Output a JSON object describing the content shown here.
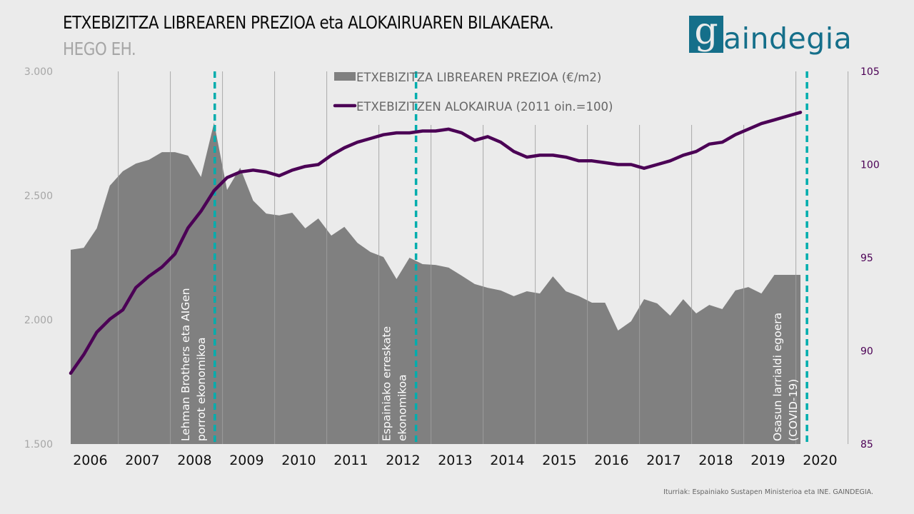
{
  "header": {
    "title": "ETXEBIZITZA LIBREAREN PREZIOA eta ALOKAIRUAREN BILAKAERA.",
    "subtitle": "HEGO EH.",
    "logo_initial": "g",
    "logo_text": "aindegia"
  },
  "footer": {
    "source": "Iturriak: Espainiako Sustapen Ministerioa eta INE. GAINDEGIA."
  },
  "colors": {
    "price_area": "#808080",
    "rent_line": "#4b0055",
    "event_line": "#00adad",
    "right_axis_text": "#4b0055",
    "left_axis_text": "#a6a6a6",
    "brand": "#156f8a"
  },
  "chart_data": {
    "type": "area+line",
    "title": "ETXEBIZITZA LIBREAREN PREZIOA eta ALOKAIRUAREN BILAKAERA.",
    "subtitle": "HEGO EH.",
    "frequency": "quarterly",
    "start": "2006Q1",
    "x_tick_labels": [
      "2006",
      "2007",
      "2008",
      "2009",
      "2010",
      "2011",
      "2012",
      "2013",
      "2014",
      "2015",
      "2016",
      "2017",
      "2018",
      "2019",
      "2020"
    ],
    "left_axis": {
      "label": "€/m2",
      "ylim": [
        1500,
        3000
      ],
      "ticks": [
        1500,
        2000,
        2500,
        3000
      ],
      "tick_labels": [
        "1.500",
        "2.000",
        "2.500",
        "3.000"
      ]
    },
    "right_axis": {
      "label": "2011 oin.=100",
      "ylim": [
        85,
        105
      ],
      "ticks": [
        85,
        90,
        95,
        100,
        105
      ],
      "tick_labels": [
        "85",
        "90",
        "95",
        "100",
        "105"
      ]
    },
    "grid": "vertical",
    "legend_position": "top-center",
    "series": [
      {
        "name": "ETXEBIZITZA LIBREAREN PREZIOA (€/m2)",
        "type": "area",
        "axis": "left",
        "values": [
          2282,
          2290,
          2368,
          2540,
          2598,
          2629,
          2644,
          2675,
          2675,
          2661,
          2575,
          2793,
          2523,
          2612,
          2480,
          2428,
          2420,
          2431,
          2368,
          2408,
          2339,
          2374,
          2310,
          2273,
          2253,
          2164,
          2250,
          2224,
          2221,
          2210,
          2178,
          2144,
          2129,
          2118,
          2095,
          2115,
          2106,
          2175,
          2115,
          2095,
          2069,
          2069,
          1957,
          1994,
          2083,
          2066,
          2017,
          2083,
          2026,
          2060,
          2043,
          2118,
          2132,
          2106,
          2181,
          2181,
          2181
        ]
      },
      {
        "name": "ETXEBIZITZEN ALOKAIRUA (2011 oin.=100)",
        "type": "line",
        "axis": "right",
        "values": [
          88.8,
          89.8,
          91.0,
          91.7,
          92.2,
          93.4,
          94.0,
          94.5,
          95.2,
          96.6,
          97.5,
          98.6,
          99.3,
          99.6,
          99.7,
          99.6,
          99.4,
          99.7,
          99.9,
          100.0,
          100.5,
          100.9,
          101.2,
          101.4,
          101.6,
          101.7,
          101.7,
          101.8,
          101.8,
          101.9,
          101.7,
          101.3,
          101.5,
          101.2,
          100.7,
          100.4,
          100.5,
          100.5,
          100.4,
          100.2,
          100.2,
          100.1,
          100.0,
          100.0,
          99.8,
          100.0,
          100.2,
          100.5,
          100.7,
          101.1,
          101.2,
          101.6,
          101.9,
          102.2,
          102.4,
          102.6,
          102.8
        ]
      }
    ],
    "annotations": [
      {
        "quarter_index": 11,
        "line1": "Lehman Brothers eta AIGen",
        "line2": "porrot ekonomikoa"
      },
      {
        "quarter_index": 26.5,
        "line1": "Espainiako erreskate",
        "line2": "ekonomikoa"
      },
      {
        "quarter_index": 56.5,
        "line1": "Osasun larrialdi egoera",
        "line2": "(COVID-19)"
      }
    ]
  }
}
